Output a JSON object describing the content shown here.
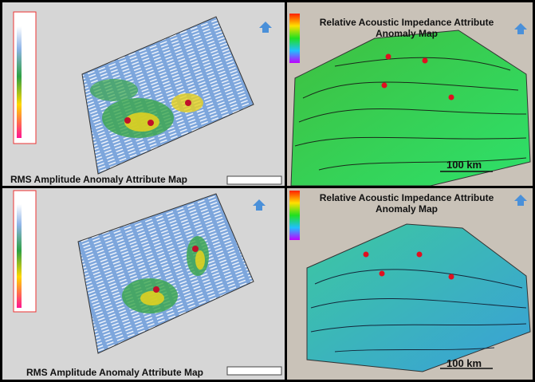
{
  "panels": [
    {
      "title": "RMS Amplitude Anomaly Attribute Map"
    },
    {
      "title": "Relative Acoustic Impedance Attribute Anomaly Map",
      "scale_label": "100 km"
    },
    {
      "title": "RMS Amplitude Anomaly Attribute Map"
    },
    {
      "title": "Relative Acoustic Impedance Attribute Anomaly Map",
      "scale_label": "100 km"
    }
  ]
}
